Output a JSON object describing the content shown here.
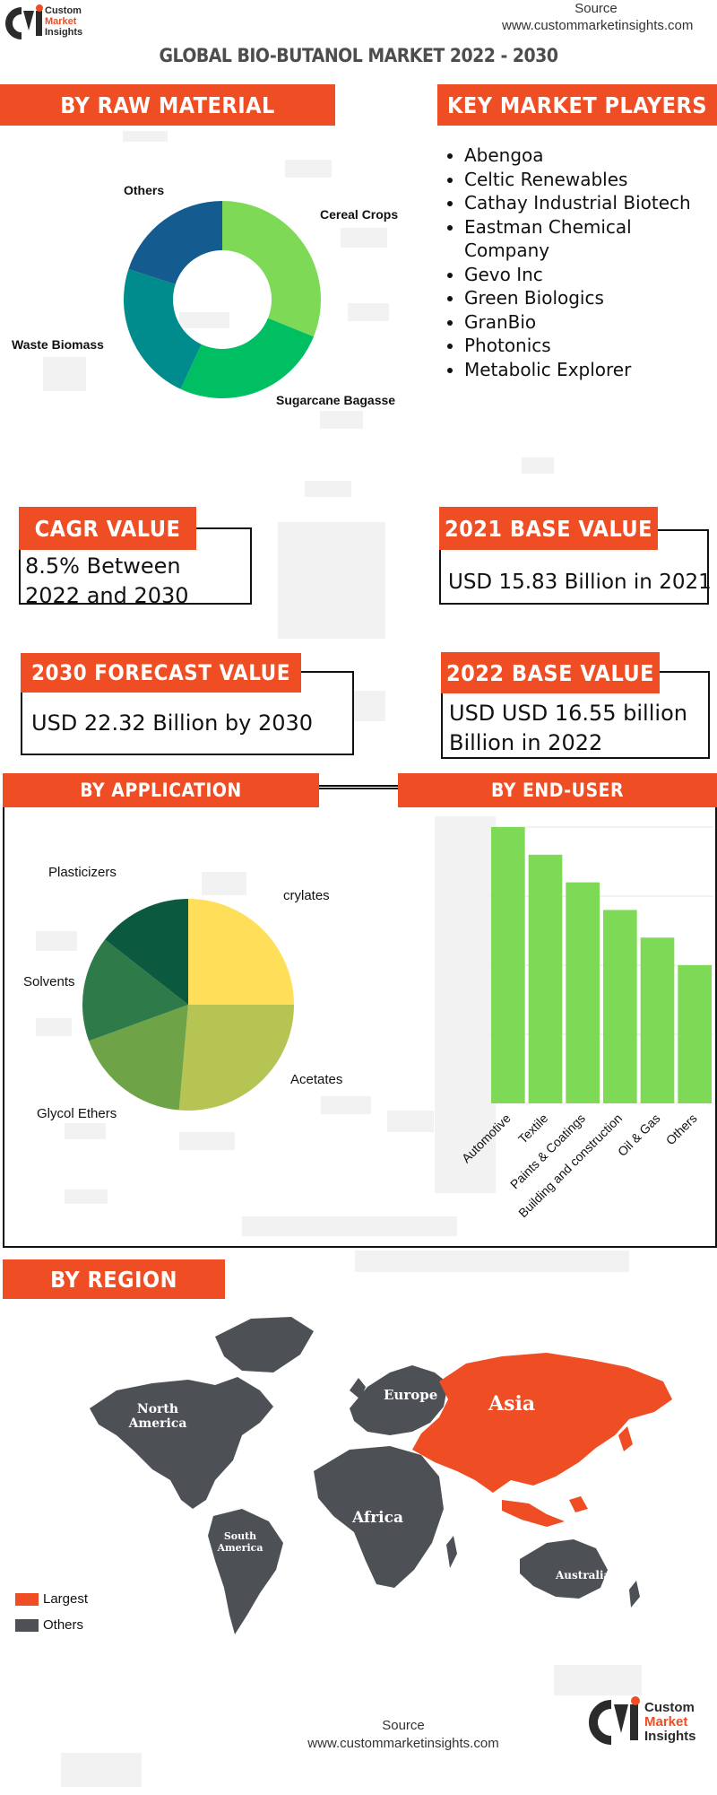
{
  "header": {
    "logo_text": [
      "Custom",
      "Market",
      "Insights"
    ],
    "source_label": "Source",
    "source_url": "www.custommarketinsights.com",
    "main_title": "GLOBAL BIO-BUTANOL MARKET 2022 - 2030"
  },
  "raw_material": {
    "title": "BY RAW MATERIAL",
    "labels": [
      "Cereal Crops",
      "Sugarcane Bagasse",
      "Waste Biomass",
      "Others"
    ],
    "colors": [
      "#7ed957",
      "#00bf63",
      "#008c8c",
      "#145c8f"
    ]
  },
  "players": {
    "title": "KEY MARKET PLAYERS",
    "items": [
      "Abengoa",
      "Celtic Renewables",
      "Cathay Industrial Biotech",
      "Eastman Chemical Company",
      "Gevo Inc",
      "Green Biologics",
      "GranBio",
      "Photonics",
      "Metabolic Explorer"
    ]
  },
  "stats": {
    "cagr_title": "CAGR VALUE",
    "cagr_line1": "8.5% Between",
    "cagr_line2": "2022 and 2030",
    "base2021_title": "2021 BASE VALUE",
    "base2021_value": "USD 15.83 Billion in 2021",
    "forecast_title": "2030 FORECAST  VALUE",
    "forecast_value": "USD 22.32 Billion by 2030",
    "base2022_title": "2022 BASE VALUE",
    "base2022_line1": "USD USD 16.55 billion",
    "base2022_line2": "Billion in 2022"
  },
  "application": {
    "title": "BY APPLICATION",
    "labels": [
      "crylates",
      "Acetates",
      "Glycol Ethers",
      "Solvents",
      "Plasticizers"
    ],
    "colors": [
      "#ffde59",
      "#b5c453",
      "#6ea347",
      "#2e7a49",
      "#0b5a40"
    ]
  },
  "end_user": {
    "title": "BY END-USER"
  },
  "chart_data": {
    "type": "bar",
    "categories": [
      "Automotive",
      "Textile",
      "Paints & Coatings",
      "Building and construction",
      "Oil & Gas",
      "Others"
    ],
    "values": [
      100,
      90,
      80,
      70,
      60,
      50
    ],
    "ylim": [
      0,
      100
    ],
    "color": "#7ed957",
    "grid": true
  },
  "region": {
    "title": "BY REGION",
    "labels": [
      "North America",
      "Europe",
      "Asia",
      "Africa",
      "South America",
      "Australia"
    ],
    "legend_largest": "Largest",
    "legend_others": "Others",
    "largest_color": "#ef4d23",
    "others_color": "#4d5156"
  },
  "footer": {
    "source_label": "Source",
    "source_url": "www.custommarketinsights.com",
    "logo_text": [
      "Custom",
      "Market",
      "Insights"
    ]
  }
}
